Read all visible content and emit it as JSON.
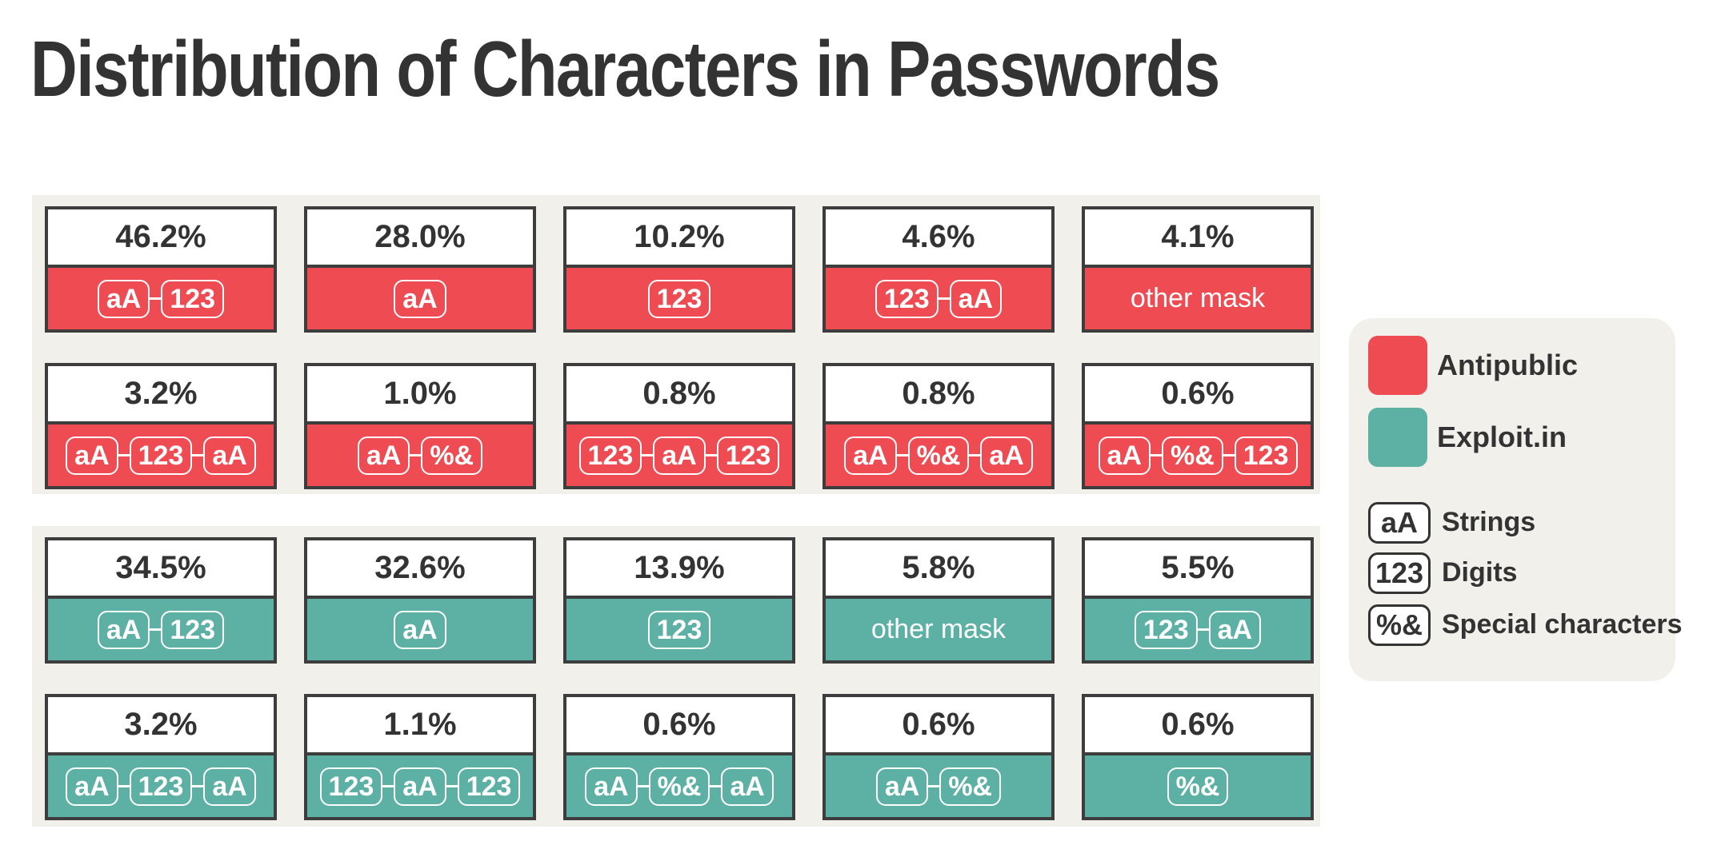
{
  "title": "Distribution of Characters in Passwords",
  "colors": {
    "antipublic": "#ef4b52",
    "exploit": "#5db0a4",
    "panel": "#f1f0ea",
    "border": "#3d3d3d"
  },
  "chart_data": [
    {
      "type": "table",
      "series_name": "Antipublic",
      "color": "#ef4b52",
      "cells": [
        {
          "value": "46.2%",
          "mask": [
            "aA",
            "123"
          ]
        },
        {
          "value": "28.0%",
          "mask": [
            "aA"
          ]
        },
        {
          "value": "10.2%",
          "mask": [
            "123"
          ]
        },
        {
          "value": "4.6%",
          "mask": [
            "123",
            "aA"
          ]
        },
        {
          "value": "4.1%",
          "other": "other mask"
        },
        {
          "value": "3.2%",
          "mask": [
            "aA",
            "123",
            "aA"
          ]
        },
        {
          "value": "1.0%",
          "mask": [
            "aA",
            "%&"
          ]
        },
        {
          "value": "0.8%",
          "mask": [
            "123",
            "aA",
            "123"
          ]
        },
        {
          "value": "0.8%",
          "mask": [
            "aA",
            "%&",
            "aA"
          ]
        },
        {
          "value": "0.6%",
          "mask": [
            "aA",
            "%&",
            "123"
          ]
        }
      ]
    },
    {
      "type": "table",
      "series_name": "Exploit.in",
      "color": "#5db0a4",
      "cells": [
        {
          "value": "34.5%",
          "mask": [
            "aA",
            "123"
          ]
        },
        {
          "value": "32.6%",
          "mask": [
            "aA"
          ]
        },
        {
          "value": "13.9%",
          "mask": [
            "123"
          ]
        },
        {
          "value": "5.8%",
          "other": "other mask"
        },
        {
          "value": "5.5%",
          "mask": [
            "123",
            "aA"
          ]
        },
        {
          "value": "3.2%",
          "mask": [
            "aA",
            "123",
            "aA"
          ]
        },
        {
          "value": "1.1%",
          "mask": [
            "123",
            "aA",
            "123"
          ]
        },
        {
          "value": "0.6%",
          "mask": [
            "aA",
            "%&",
            "aA"
          ]
        },
        {
          "value": "0.6%",
          "mask": [
            "aA",
            "%&"
          ]
        },
        {
          "value": "0.6%",
          "mask": [
            "%&"
          ]
        }
      ]
    }
  ],
  "legend": {
    "series": [
      {
        "label": "Antipublic",
        "color": "#ef4b52"
      },
      {
        "label": "Exploit.in",
        "color": "#5db0a4"
      }
    ],
    "symbols": [
      {
        "chip": "aA",
        "label": "Strings"
      },
      {
        "chip": "123",
        "label": "Digits"
      },
      {
        "chip": "%&",
        "label": "Special characters"
      }
    ]
  }
}
